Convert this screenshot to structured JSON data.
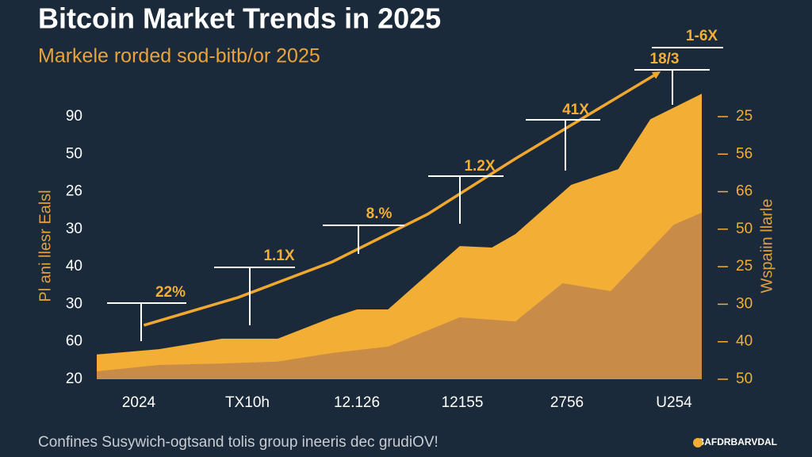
{
  "chart_data": {
    "type": "area",
    "title": "Bitcoin Market Trends in 2025",
    "subtitle": "Markele rorded sod-bitb/or 2025",
    "y_label": "Pl ani llesr Ealsl",
    "y2_label": "Wspaiin llarle",
    "footer": "Confines Susywich-ogtsand tolis group ineeris dec grudiOV!",
    "source": "BAFDRBARVDAL",
    "categories": [
      "2024",
      "TX10h",
      "12.126",
      "12155",
      "2756",
      "U254"
    ],
    "xlim": [
      -0.39,
      5.26
    ],
    "ylim": [
      0,
      7
    ],
    "yticks": [
      {
        "value": 7,
        "label": "90"
      },
      {
        "value": 6,
        "label": "50"
      },
      {
        "value": 5,
        "label": "26"
      },
      {
        "value": 4,
        "label": "30"
      },
      {
        "value": 3,
        "label": "40"
      },
      {
        "value": 2,
        "label": "30"
      },
      {
        "value": 1,
        "label": "60"
      },
      {
        "value": 0,
        "label": "20"
      }
    ],
    "y2lim": [
      0,
      7
    ],
    "y2ticks": [
      {
        "value": 7,
        "label": "25"
      },
      {
        "value": 6,
        "label": "56"
      },
      {
        "value": 5,
        "label": "66"
      },
      {
        "value": 4,
        "label": "50"
      },
      {
        "value": 3,
        "label": "25"
      },
      {
        "value": 2,
        "label": "30"
      },
      {
        "value": 1,
        "label": "40"
      },
      {
        "value": 0,
        "label": "50"
      }
    ],
    "grid": false,
    "series": [
      {
        "name": "upper",
        "color": "#f2ae35",
        "x": [
          -0.39,
          0.19,
          0.78,
          1.3,
          1.81,
          2.04,
          2.33,
          3.0,
          3.3,
          3.52,
          4.04,
          4.48,
          4.78,
          5.26
        ],
        "values": [
          0.66,
          0.8,
          1.08,
          1.08,
          1.65,
          1.86,
          1.86,
          3.55,
          3.51,
          3.87,
          5.18,
          5.6,
          6.93,
          7.61
        ]
      },
      {
        "name": "lower",
        "color": "#c98c48",
        "x": [
          -0.39,
          0.19,
          0.78,
          1.3,
          1.81,
          2.33,
          3.0,
          3.52,
          3.96,
          4.41,
          5.0,
          5.26
        ],
        "values": [
          0.21,
          0.38,
          0.42,
          0.47,
          0.7,
          0.87,
          1.65,
          1.54,
          2.56,
          2.35,
          4.12,
          4.44
        ]
      }
    ],
    "trend": {
      "color": "#f0a830",
      "x": [
        0.05,
        0.93,
        1.81,
        2.7,
        3.52,
        4.26,
        4.85
      ],
      "values": [
        1.44,
        2.18,
        3.13,
        4.4,
        5.88,
        7.15,
        8.16
      ]
    },
    "annotations": [
      "22%",
      "1.1X",
      "8.%",
      "1.2X",
      "41X",
      "18/3",
      "1-6X"
    ]
  }
}
